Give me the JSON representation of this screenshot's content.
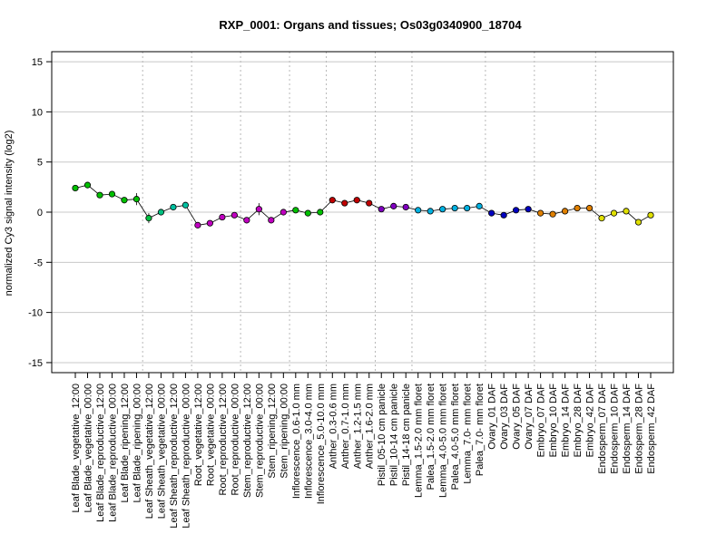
{
  "chart_data": {
    "type": "line",
    "title": "RXP_0001: Organs and tissues; Os03g0340900_18704",
    "xlabel": "",
    "ylabel": "normalized Cy3 signal intensity (log2)",
    "ylim": [
      -16,
      16
    ],
    "yticks": [
      -15,
      -10,
      -5,
      0,
      5,
      10,
      15
    ],
    "grid": "horizontal lines at y ticks; dotted vertical separators between tissue groups",
    "legend": "none",
    "categories": [
      "Leaf Blade_vegetative_12:00",
      "Leaf Blade_vegetative_00:00",
      "Leaf Blade_reproductive_12:00",
      "Leaf Blade_reproductive_00:00",
      "Leaf Blade_ripening_12:00",
      "Leaf Blade_ripening_00:00",
      "Leaf Sheath_vegetative_12:00",
      "Leaf Sheath_vegetative_00:00",
      "Leaf Sheath_reproductive_12:00",
      "Leaf Sheath_reproductive_00:00",
      "Root_vegetative_12:00",
      "Root_vegetative_00:00",
      "Root_reproductive_12:00",
      "Root_reproductive_00:00",
      "Stem_reproductive_12:00",
      "Stem_reproductive_00:00",
      "Stem_ripening_12:00",
      "Stem_ripening_00:00",
      "Inflorescence_0.6-1.0 mm",
      "Inflorescence_3.0-4.0 mm",
      "Inflorescence_5.0-10.0 mm",
      "Anther_0.3-0.6 mm",
      "Anther_0.7-1.0 mm",
      "Anther_1.2-1.5 mm",
      "Anther_1.6-2.0 mm",
      "Pistil_05-10 cm panicle",
      "Pistil_10-14 cm panicle",
      "Pistil_14-18 cm panicle",
      "Lemma_1.5-2.0 mm floret",
      "Palea_1.5-2.0 mm floret",
      "Lemma_4.0-5.0 mm floret",
      "Palea_4.0-5.0 mm floret",
      "Lemma_7.0- mm floret",
      "Palea_7.0- mm floret",
      "Ovary_01 DAF",
      "Ovary_03 DAF",
      "Ovary_05 DAF",
      "Ovary_07 DAF",
      "Embryo_07 DAF",
      "Embryo_10 DAF",
      "Embryo_14 DAF",
      "Embryo_28 DAF",
      "Embryo_42 DAF",
      "Endosperm_07 DAF",
      "Endosperm_10 DAF",
      "Endosperm_14 DAF",
      "Endosperm_28 DAF",
      "Endosperm_42 DAF"
    ],
    "series": [
      {
        "values": [
          2.4,
          2.7,
          1.7,
          1.8,
          1.2,
          1.3,
          -0.6,
          0.0,
          0.5,
          0.7,
          -1.3,
          -1.1,
          -0.5,
          -0.3,
          -0.8,
          0.3,
          -0.8,
          0.0,
          0.2,
          -0.1,
          0.0,
          1.2,
          0.9,
          1.2,
          0.9,
          0.3,
          0.6,
          0.5,
          0.2,
          0.1,
          0.3,
          0.4,
          0.4,
          0.6,
          -0.1,
          -0.3,
          0.2,
          0.3,
          -0.1,
          -0.2,
          0.1,
          0.4,
          0.4,
          -0.6,
          -0.1,
          0.1,
          -1.0,
          -0.3
        ],
        "errors": [
          0.05,
          0.05,
          0.05,
          0.05,
          0.05,
          0.6,
          0.5,
          0.05,
          0.05,
          0.05,
          0.05,
          0.05,
          0.05,
          0.05,
          0.05,
          0.6,
          0.05,
          0.05,
          0.05,
          0.05,
          0.05,
          0.05,
          0.05,
          0.05,
          0.05,
          0.05,
          0.05,
          0.05,
          0.05,
          0.05,
          0.05,
          0.05,
          0.05,
          0.05,
          0.05,
          0.05,
          0.05,
          0.05,
          0.05,
          0.05,
          0.05,
          0.05,
          0.05,
          0.05,
          0.05,
          0.05,
          0.05,
          0.05
        ]
      }
    ],
    "point_colors": [
      "#00c000",
      "#00c000",
      "#00c000",
      "#00c000",
      "#00c000",
      "#00c000",
      "#00c040",
      "#00c080",
      "#00c0a0",
      "#00c0a0",
      "#c000c0",
      "#c000c0",
      "#c000c0",
      "#c000c0",
      "#c000c0",
      "#c000c0",
      "#c000c0",
      "#c000c0",
      "#00c000",
      "#00c000",
      "#00c000",
      "#c00000",
      "#c00000",
      "#c00000",
      "#c00000",
      "#8000c0",
      "#8000c0",
      "#8000c0",
      "#00b0e0",
      "#00b0e0",
      "#00b0e0",
      "#00b0e0",
      "#00b0e0",
      "#00b0e0",
      "#0000c0",
      "#0000c0",
      "#0000c0",
      "#0000c0",
      "#e08000",
      "#e08000",
      "#e08000",
      "#e08000",
      "#e08000",
      "#e0e000",
      "#e0e000",
      "#e0e000",
      "#e0e000",
      "#e0e000"
    ],
    "group_separators_after_index": [
      5,
      9,
      13,
      17,
      20,
      24,
      27,
      33,
      37,
      42
    ]
  }
}
